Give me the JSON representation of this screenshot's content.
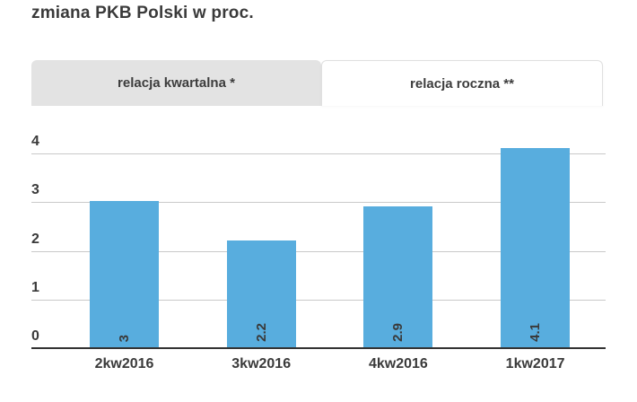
{
  "header": {
    "title": "zmiana PKB Polski w proc."
  },
  "tabs": [
    {
      "label": "relacja kwartalna *",
      "active": false
    },
    {
      "label": "relacja roczna **",
      "active": true
    }
  ],
  "colors": {
    "bar": "#58adde",
    "text": "#3a3a3a",
    "gridline": "#c9c9c9",
    "axis": "#333333",
    "inactive_tab_bg": "#e3e3e3",
    "active_tab_border": "#e0e0e0"
  },
  "chart_data": {
    "type": "bar",
    "title": "zmiana PKB Polski w proc.",
    "categories": [
      "2kw2016",
      "3kw2016",
      "4kw2016",
      "1kw2017"
    ],
    "values": [
      3,
      2.2,
      2.9,
      4.1
    ],
    "value_labels": [
      "3",
      "2.2",
      "2.9",
      "4.1"
    ],
    "xlabel": "",
    "ylabel": "",
    "ylim": [
      0,
      4
    ],
    "yticks": [
      0,
      1,
      2,
      3,
      4
    ],
    "grid": true,
    "legend": "none",
    "bar_color": "#58adde"
  }
}
